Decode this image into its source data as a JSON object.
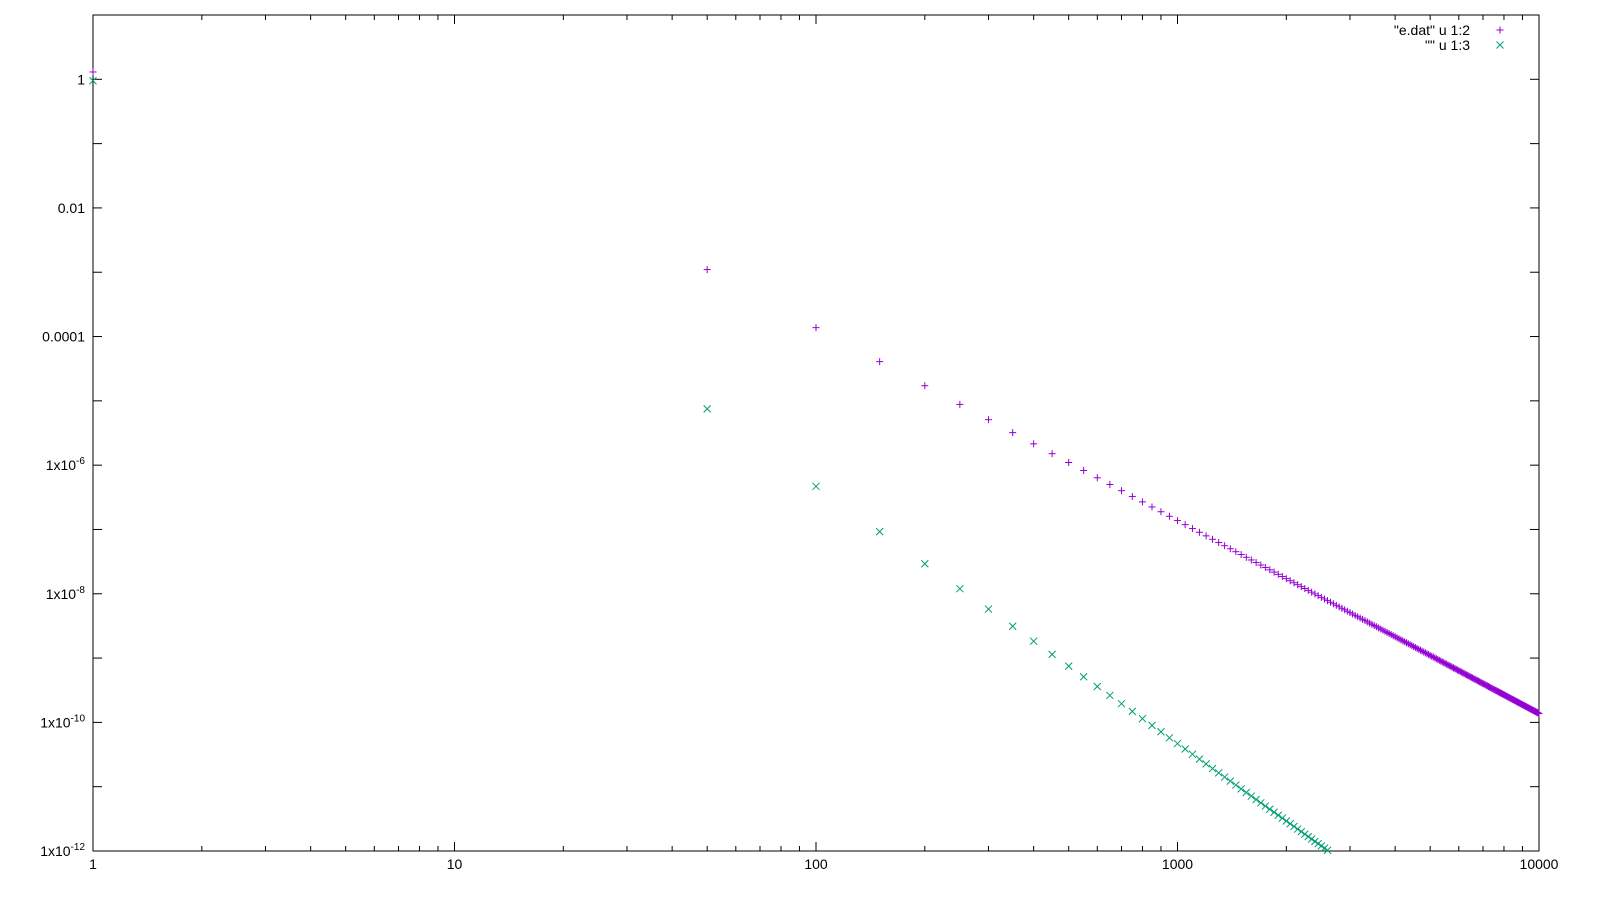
{
  "chart_data": {
    "type": "scatter",
    "title": "",
    "xlabel": "",
    "ylabel": "",
    "x_scale": "log",
    "y_scale": "log",
    "xlim": [
      1,
      10000
    ],
    "ylim": [
      1e-12,
      10
    ],
    "grid": false,
    "legend_position": "top-right",
    "x_ticks": [
      {
        "value": 1,
        "label": "1"
      },
      {
        "value": 10,
        "label": "10"
      },
      {
        "value": 100,
        "label": "100"
      },
      {
        "value": 1000,
        "label": "1000"
      },
      {
        "value": 10000,
        "label": "10000"
      }
    ],
    "y_ticks": [
      {
        "value": 1,
        "label": "1",
        "base": "",
        "exp": ""
      },
      {
        "value": 0.01,
        "label": "0.01",
        "base": "",
        "exp": ""
      },
      {
        "value": 0.0001,
        "label": "0.0001",
        "base": "",
        "exp": ""
      },
      {
        "value": 1e-06,
        "label": "",
        "base": "1x10",
        "exp": "-6"
      },
      {
        "value": 1e-08,
        "label": "",
        "base": "1x10",
        "exp": "-8"
      },
      {
        "value": 1e-10,
        "label": "",
        "base": "1x10",
        "exp": "-10"
      },
      {
        "value": 1e-12,
        "label": "",
        "base": "1x10",
        "exp": "-12"
      }
    ],
    "series": [
      {
        "name": "\"e.dat\" u 1:2",
        "marker": "plus",
        "color": "#9400d3",
        "x_start": 50,
        "x_step": 50,
        "count": 200,
        "y_ref": 0.0011,
        "x_ref": 50,
        "slope": -3,
        "extra_points": [
          [
            1,
            1.3
          ]
        ]
      },
      {
        "name": "\"\" u 1:3",
        "marker": "cross",
        "color": "#009e73",
        "x_start": 50,
        "x_step": 50,
        "count": 200,
        "y_ref": 7.5e-06,
        "x_ref": 50,
        "slope": -4,
        "extra_points": [
          [
            1,
            0.95
          ]
        ]
      }
    ]
  }
}
